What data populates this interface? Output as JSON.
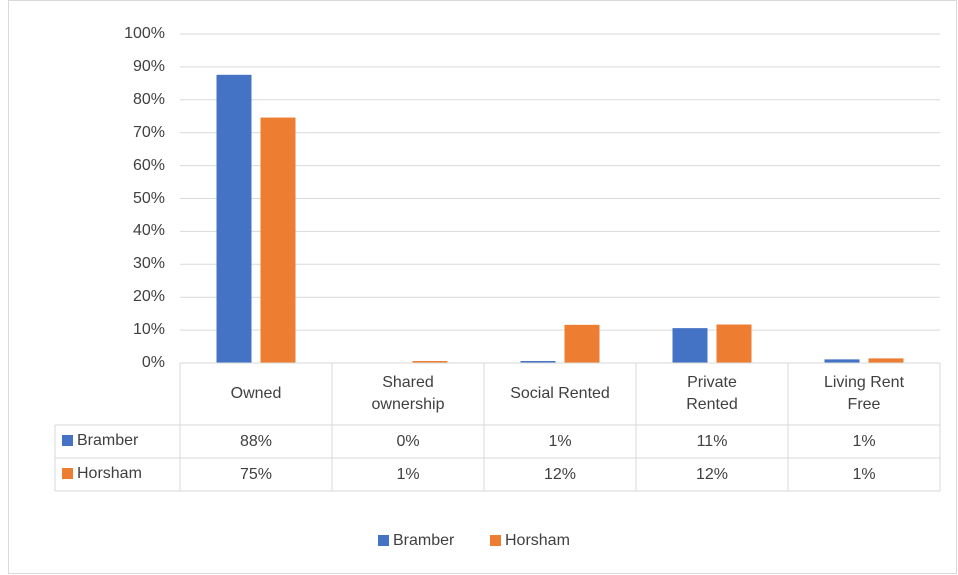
{
  "chart_data": {
    "type": "bar",
    "categories": [
      "Owned",
      "Shared ownership",
      "Social Rented",
      "Private Rented",
      "Living Rent Free"
    ],
    "series": [
      {
        "name": "Bramber",
        "color": "#4472c4",
        "values": [
          87.6,
          0,
          0.6,
          10.6,
          1.1
        ],
        "value_labels": [
          "88%",
          "0%",
          "1%",
          "11%",
          "1%"
        ]
      },
      {
        "name": "Horsham",
        "color": "#ed7d31",
        "values": [
          74.6,
          0.6,
          11.6,
          11.7,
          1.4
        ],
        "value_labels": [
          "75%",
          "1%",
          "12%",
          "12%",
          "1%"
        ]
      }
    ],
    "ylim": [
      0,
      100
    ],
    "yticks": [
      {
        "value": 0,
        "label": "0%"
      },
      {
        "value": 10,
        "label": "10%"
      },
      {
        "value": 20,
        "label": "20%"
      },
      {
        "value": 30,
        "label": "30%"
      },
      {
        "value": 40,
        "label": "40%"
      },
      {
        "value": 50,
        "label": "50%"
      },
      {
        "value": 60,
        "label": "60%"
      },
      {
        "value": 70,
        "label": "70%"
      },
      {
        "value": 80,
        "label": "80%"
      },
      {
        "value": 90,
        "label": "90%"
      },
      {
        "value": 100,
        "label": "100%"
      }
    ],
    "grid": true,
    "legend": "bottom"
  }
}
